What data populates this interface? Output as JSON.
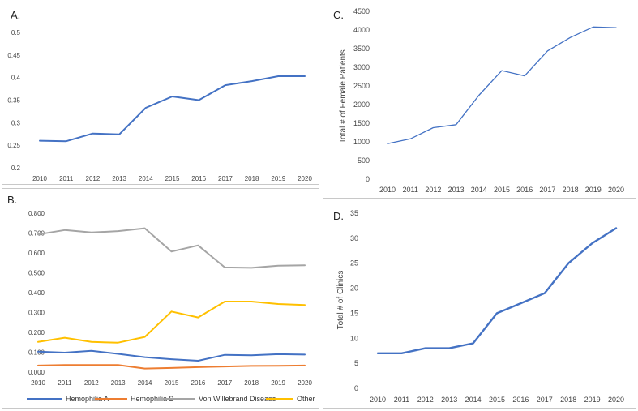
{
  "chart_data": [
    {
      "panel": "A.",
      "type": "line",
      "x": [
        "2010",
        "2011",
        "2012",
        "2013",
        "2014",
        "2015",
        "2016",
        "2017",
        "2018",
        "2019",
        "2020"
      ],
      "series": [
        {
          "color": "#4472C4",
          "values": [
            0.26,
            0.259,
            0.276,
            0.274,
            0.333,
            0.358,
            0.35,
            0.383,
            0.392,
            0.403,
            0.403
          ]
        }
      ],
      "ylim": [
        0.2,
        0.5
      ],
      "yticks": [
        "0.2",
        "0.25",
        "0.3",
        "0.35",
        "0.4",
        "0.45",
        "0.5"
      ],
      "ylabel": "",
      "grid": false
    },
    {
      "panel": "B.",
      "type": "line",
      "x": [
        "2010",
        "2011",
        "2012",
        "2013",
        "2014",
        "2015",
        "2016",
        "2017",
        "2018",
        "2019",
        "2020"
      ],
      "series": [
        {
          "name": "Hemophilia A",
          "color": "#4472C4",
          "values": [
            0.103,
            0.098,
            0.107,
            0.092,
            0.075,
            0.065,
            0.057,
            0.087,
            0.085,
            0.09,
            0.088
          ]
        },
        {
          "name": "Hemophilia B",
          "color": "#ED7D31",
          "values": [
            0.033,
            0.036,
            0.036,
            0.036,
            0.018,
            0.021,
            0.025,
            0.028,
            0.031,
            0.032,
            0.033
          ]
        },
        {
          "name": "Von Willebrand Disease",
          "color": "#A5A5A5",
          "values": [
            0.693,
            0.715,
            0.703,
            0.71,
            0.724,
            0.607,
            0.638,
            0.527,
            0.525,
            0.536,
            0.538
          ]
        },
        {
          "name": "Other",
          "color": "#FFC000",
          "values": [
            0.152,
            0.173,
            0.152,
            0.148,
            0.177,
            0.305,
            0.275,
            0.355,
            0.355,
            0.343,
            0.338
          ]
        }
      ],
      "ylim": [
        0,
        0.8
      ],
      "yticks": [
        "0.000",
        "0.100",
        "0.200",
        "0.300",
        "0.400",
        "0.500",
        "0.600",
        "0.700",
        "0.800"
      ],
      "legend": "bottom",
      "ylabel": "",
      "grid": false
    },
    {
      "panel": "C.",
      "type": "line",
      "x": [
        "2010",
        "2011",
        "2012",
        "2013",
        "2014",
        "2015",
        "2016",
        "2017",
        "2018",
        "2019",
        "2020"
      ],
      "series": [
        {
          "color": "#4472C4",
          "values": [
            950,
            1080,
            1380,
            1460,
            2250,
            2910,
            2770,
            3440,
            3800,
            4080,
            4060
          ]
        }
      ],
      "ylim": [
        0,
        4500
      ],
      "yticks": [
        "0",
        "500",
        "1000",
        "1500",
        "2000",
        "2500",
        "3000",
        "3500",
        "4000",
        "4500"
      ],
      "ylabel": "Total # of Female Patients",
      "grid": false
    },
    {
      "panel": "D.",
      "type": "line",
      "x": [
        "2010",
        "2011",
        "2012",
        "2013",
        "2014",
        "2015",
        "2016",
        "2017",
        "2018",
        "2019",
        "2020"
      ],
      "series": [
        {
          "color": "#4472C4",
          "values": [
            7,
            7,
            8,
            8,
            9,
            15,
            17,
            19,
            25,
            29,
            32
          ]
        }
      ],
      "ylim": [
        0,
        35
      ],
      "yticks": [
        "0",
        "5",
        "10",
        "15",
        "20",
        "25",
        "30",
        "35"
      ],
      "ylabel": "Total # of Clinics",
      "grid": false
    }
  ]
}
